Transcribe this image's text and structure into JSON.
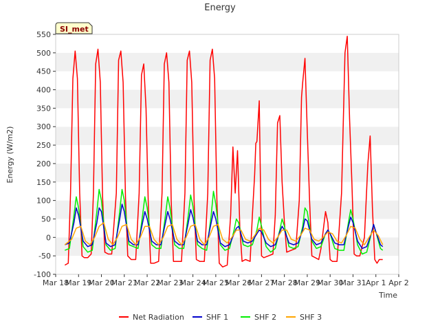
{
  "chart_data": {
    "type": "line",
    "title": "Energy",
    "xlabel": "Time",
    "ylabel": "Energy (W/m2)",
    "site_badge": "SI_met",
    "ylim": [
      -100,
      550
    ],
    "yticks": [
      -100,
      -50,
      0,
      50,
      100,
      150,
      200,
      250,
      300,
      350,
      400,
      450,
      500,
      550
    ],
    "xlim": [
      0,
      15
    ],
    "xticks": [
      {
        "day": 0,
        "label": "Mar 18"
      },
      {
        "day": 1,
        "label": "Mar 19"
      },
      {
        "day": 2,
        "label": "Mar 20"
      },
      {
        "day": 3,
        "label": "Mar 21"
      },
      {
        "day": 4,
        "label": "Mar 22"
      },
      {
        "day": 5,
        "label": "Mar 23"
      },
      {
        "day": 6,
        "label": "Mar 24"
      },
      {
        "day": 7,
        "label": "Mar 25"
      },
      {
        "day": 8,
        "label": "Mar 26"
      },
      {
        "day": 9,
        "label": "Mar 27"
      },
      {
        "day": 10,
        "label": "Mar 28"
      },
      {
        "day": 11,
        "label": "Mar 29"
      },
      {
        "day": 12,
        "label": "Mar 30"
      },
      {
        "day": 13,
        "label": "Mar 31"
      },
      {
        "day": 14,
        "label": "Apr 1"
      },
      {
        "day": 15,
        "label": "Apr 2"
      }
    ],
    "x_units": "days since Mar 18",
    "grid": "horizontal bands",
    "legend_position": "bottom",
    "series": [
      {
        "name": "Net Radiation",
        "color": "#ff0000",
        "x": [
          0.4,
          0.55,
          0.65,
          0.75,
          0.85,
          0.95,
          1.05,
          1.15,
          1.25,
          1.4,
          1.55,
          1.65,
          1.75,
          1.85,
          1.95,
          2.05,
          2.15,
          2.3,
          2.45,
          2.65,
          2.75,
          2.85,
          2.95,
          3.05,
          3.15,
          3.3,
          3.5,
          3.65,
          3.75,
          3.85,
          3.95,
          4.05,
          4.15,
          4.3,
          4.5,
          4.65,
          4.75,
          4.85,
          4.95,
          5.05,
          5.15,
          5.3,
          5.5,
          5.65,
          5.75,
          5.85,
          5.95,
          6.05,
          6.15,
          6.3,
          6.5,
          6.65,
          6.75,
          6.85,
          6.95,
          7.05,
          7.15,
          7.3,
          7.5,
          7.65,
          7.75,
          7.85,
          7.95,
          8.05,
          8.15,
          8.3,
          8.5,
          8.6,
          8.7,
          8.75,
          8.8,
          8.9,
          9.0,
          9.1,
          9.3,
          9.5,
          9.6,
          9.7,
          9.8,
          9.9,
          10.0,
          10.1,
          10.3,
          10.5,
          10.65,
          10.75,
          10.8,
          10.9,
          11.0,
          11.1,
          11.2,
          11.35,
          11.5,
          11.6,
          11.7,
          11.8,
          11.9,
          12.0,
          12.1,
          12.3,
          12.5,
          12.65,
          12.75,
          12.85,
          12.95,
          13.05,
          13.15,
          13.3,
          13.5,
          13.65,
          13.75,
          13.85,
          13.95,
          14.05,
          14.15,
          14.3
        ],
        "y": [
          -75,
          -70,
          120,
          430,
          505,
          430,
          120,
          -50,
          -55,
          -55,
          -45,
          120,
          470,
          510,
          420,
          110,
          -40,
          -45,
          -45,
          120,
          480,
          505,
          420,
          110,
          -50,
          -60,
          -60,
          120,
          440,
          470,
          350,
          90,
          -70,
          -70,
          -65,
          120,
          470,
          500,
          420,
          100,
          -65,
          -65,
          -65,
          120,
          480,
          505,
          420,
          100,
          -60,
          -65,
          -65,
          120,
          480,
          510,
          430,
          100,
          -70,
          -80,
          -75,
          60,
          245,
          120,
          235,
          30,
          -65,
          -60,
          -65,
          60,
          170,
          255,
          260,
          370,
          -50,
          -55,
          -50,
          -45,
          60,
          310,
          330,
          150,
          40,
          -40,
          -35,
          -30,
          100,
          380,
          420,
          485,
          290,
          100,
          -50,
          -55,
          -60,
          -30,
          20,
          70,
          40,
          -60,
          -65,
          -65,
          120,
          500,
          545,
          320,
          150,
          -45,
          -50,
          -50,
          0,
          200,
          275,
          80,
          -60,
          -70,
          -60,
          -60
        ]
      },
      {
        "name": "SHF 1",
        "color": "#0000cc",
        "x": [
          0.4,
          0.6,
          0.8,
          0.9,
          1.0,
          1.2,
          1.4,
          1.6,
          1.8,
          1.9,
          2.0,
          2.2,
          2.4,
          2.6,
          2.8,
          2.9,
          3.0,
          3.2,
          3.4,
          3.6,
          3.8,
          3.9,
          4.0,
          4.2,
          4.4,
          4.6,
          4.8,
          4.9,
          5.0,
          5.2,
          5.4,
          5.6,
          5.8,
          5.9,
          6.0,
          6.2,
          6.4,
          6.6,
          6.8,
          6.9,
          7.0,
          7.2,
          7.4,
          7.6,
          7.8,
          7.9,
          8.0,
          8.2,
          8.4,
          8.6,
          8.8,
          8.9,
          9.0,
          9.2,
          9.4,
          9.6,
          9.8,
          9.9,
          10.0,
          10.2,
          10.4,
          10.6,
          10.8,
          10.9,
          11.0,
          11.2,
          11.4,
          11.6,
          11.8,
          11.9,
          12.0,
          12.2,
          12.4,
          12.6,
          12.8,
          12.9,
          13.0,
          13.2,
          13.4,
          13.6,
          13.8,
          13.9,
          14.0,
          14.2,
          14.3
        ],
        "y": [
          -20,
          -15,
          40,
          80,
          60,
          -10,
          -25,
          -20,
          40,
          80,
          70,
          -15,
          -25,
          -20,
          50,
          90,
          70,
          -10,
          -20,
          -20,
          40,
          70,
          50,
          -10,
          -20,
          -20,
          40,
          70,
          50,
          -10,
          -20,
          -20,
          40,
          75,
          55,
          -10,
          -20,
          -20,
          40,
          70,
          50,
          -15,
          -25,
          -20,
          10,
          25,
          30,
          -10,
          -15,
          -10,
          10,
          20,
          15,
          -15,
          -25,
          -20,
          15,
          30,
          20,
          -15,
          -20,
          -15,
          20,
          50,
          45,
          -5,
          -20,
          -15,
          10,
          20,
          10,
          -15,
          -20,
          -20,
          30,
          55,
          40,
          -10,
          -30,
          -25,
          10,
          35,
          15,
          -20,
          -25
        ]
      },
      {
        "name": "SHF 2",
        "color": "#00ee00",
        "x": [
          0.4,
          0.6,
          0.8,
          0.9,
          1.0,
          1.2,
          1.4,
          1.6,
          1.8,
          1.9,
          2.0,
          2.2,
          2.4,
          2.6,
          2.8,
          2.9,
          3.0,
          3.2,
          3.4,
          3.6,
          3.8,
          3.9,
          4.0,
          4.2,
          4.4,
          4.6,
          4.8,
          4.9,
          5.0,
          5.2,
          5.4,
          5.6,
          5.8,
          5.9,
          6.0,
          6.2,
          6.4,
          6.6,
          6.8,
          6.9,
          7.0,
          7.2,
          7.4,
          7.6,
          7.8,
          7.9,
          8.0,
          8.2,
          8.4,
          8.6,
          8.8,
          8.9,
          9.0,
          9.2,
          9.4,
          9.6,
          9.8,
          9.9,
          10.0,
          10.2,
          10.4,
          10.6,
          10.8,
          10.9,
          11.0,
          11.2,
          11.4,
          11.6,
          11.8,
          11.9,
          12.0,
          12.2,
          12.4,
          12.6,
          12.8,
          12.9,
          13.0,
          13.2,
          13.4,
          13.6,
          13.8,
          13.9,
          14.0,
          14.2,
          14.3
        ],
        "y": [
          -35,
          -30,
          60,
          110,
          80,
          -25,
          -40,
          -35,
          70,
          130,
          100,
          -20,
          -35,
          -30,
          70,
          130,
          100,
          -20,
          -25,
          -30,
          60,
          110,
          80,
          -20,
          -30,
          -30,
          60,
          110,
          80,
          -20,
          -30,
          -30,
          60,
          115,
          85,
          -20,
          -30,
          -35,
          60,
          125,
          90,
          -20,
          -35,
          -30,
          20,
          50,
          40,
          -20,
          -25,
          -20,
          20,
          55,
          30,
          -25,
          -40,
          -30,
          20,
          50,
          30,
          -25,
          -30,
          -25,
          30,
          80,
          70,
          -10,
          -30,
          -25,
          10,
          20,
          10,
          -30,
          -35,
          -35,
          40,
          75,
          50,
          -20,
          -45,
          -40,
          10,
          35,
          15,
          -30,
          -35
        ]
      },
      {
        "name": "SHF 3",
        "color": "#ffa500",
        "x": [
          0.4,
          0.7,
          0.9,
          1.1,
          1.3,
          1.5,
          1.7,
          1.9,
          2.1,
          2.3,
          2.5,
          2.7,
          2.9,
          3.1,
          3.3,
          3.5,
          3.7,
          3.9,
          4.1,
          4.3,
          4.5,
          4.7,
          4.9,
          5.1,
          5.3,
          5.5,
          5.7,
          5.9,
          6.1,
          6.3,
          6.5,
          6.7,
          6.9,
          7.1,
          7.3,
          7.5,
          7.7,
          7.9,
          8.1,
          8.3,
          8.5,
          8.7,
          8.9,
          9.1,
          9.3,
          9.5,
          9.7,
          9.9,
          10.1,
          10.3,
          10.5,
          10.7,
          10.9,
          11.1,
          11.3,
          11.5,
          11.7,
          11.9,
          12.1,
          12.3,
          12.5,
          12.7,
          12.9,
          13.1,
          13.3,
          13.5,
          13.7,
          13.9,
          14.1,
          14.3
        ],
        "y": [
          -20,
          -5,
          25,
          30,
          -10,
          -20,
          0,
          30,
          40,
          -5,
          -20,
          0,
          30,
          35,
          -5,
          -20,
          0,
          30,
          30,
          -5,
          -20,
          0,
          30,
          35,
          -5,
          -20,
          0,
          30,
          35,
          -5,
          -20,
          0,
          30,
          35,
          -5,
          -15,
          0,
          20,
          20,
          -5,
          -10,
          5,
          25,
          20,
          -5,
          -15,
          0,
          20,
          20,
          -5,
          -10,
          5,
          25,
          20,
          -5,
          -10,
          0,
          15,
          10,
          -10,
          -15,
          5,
          30,
          25,
          -5,
          -20,
          0,
          20,
          5,
          -20
        ]
      }
    ]
  }
}
